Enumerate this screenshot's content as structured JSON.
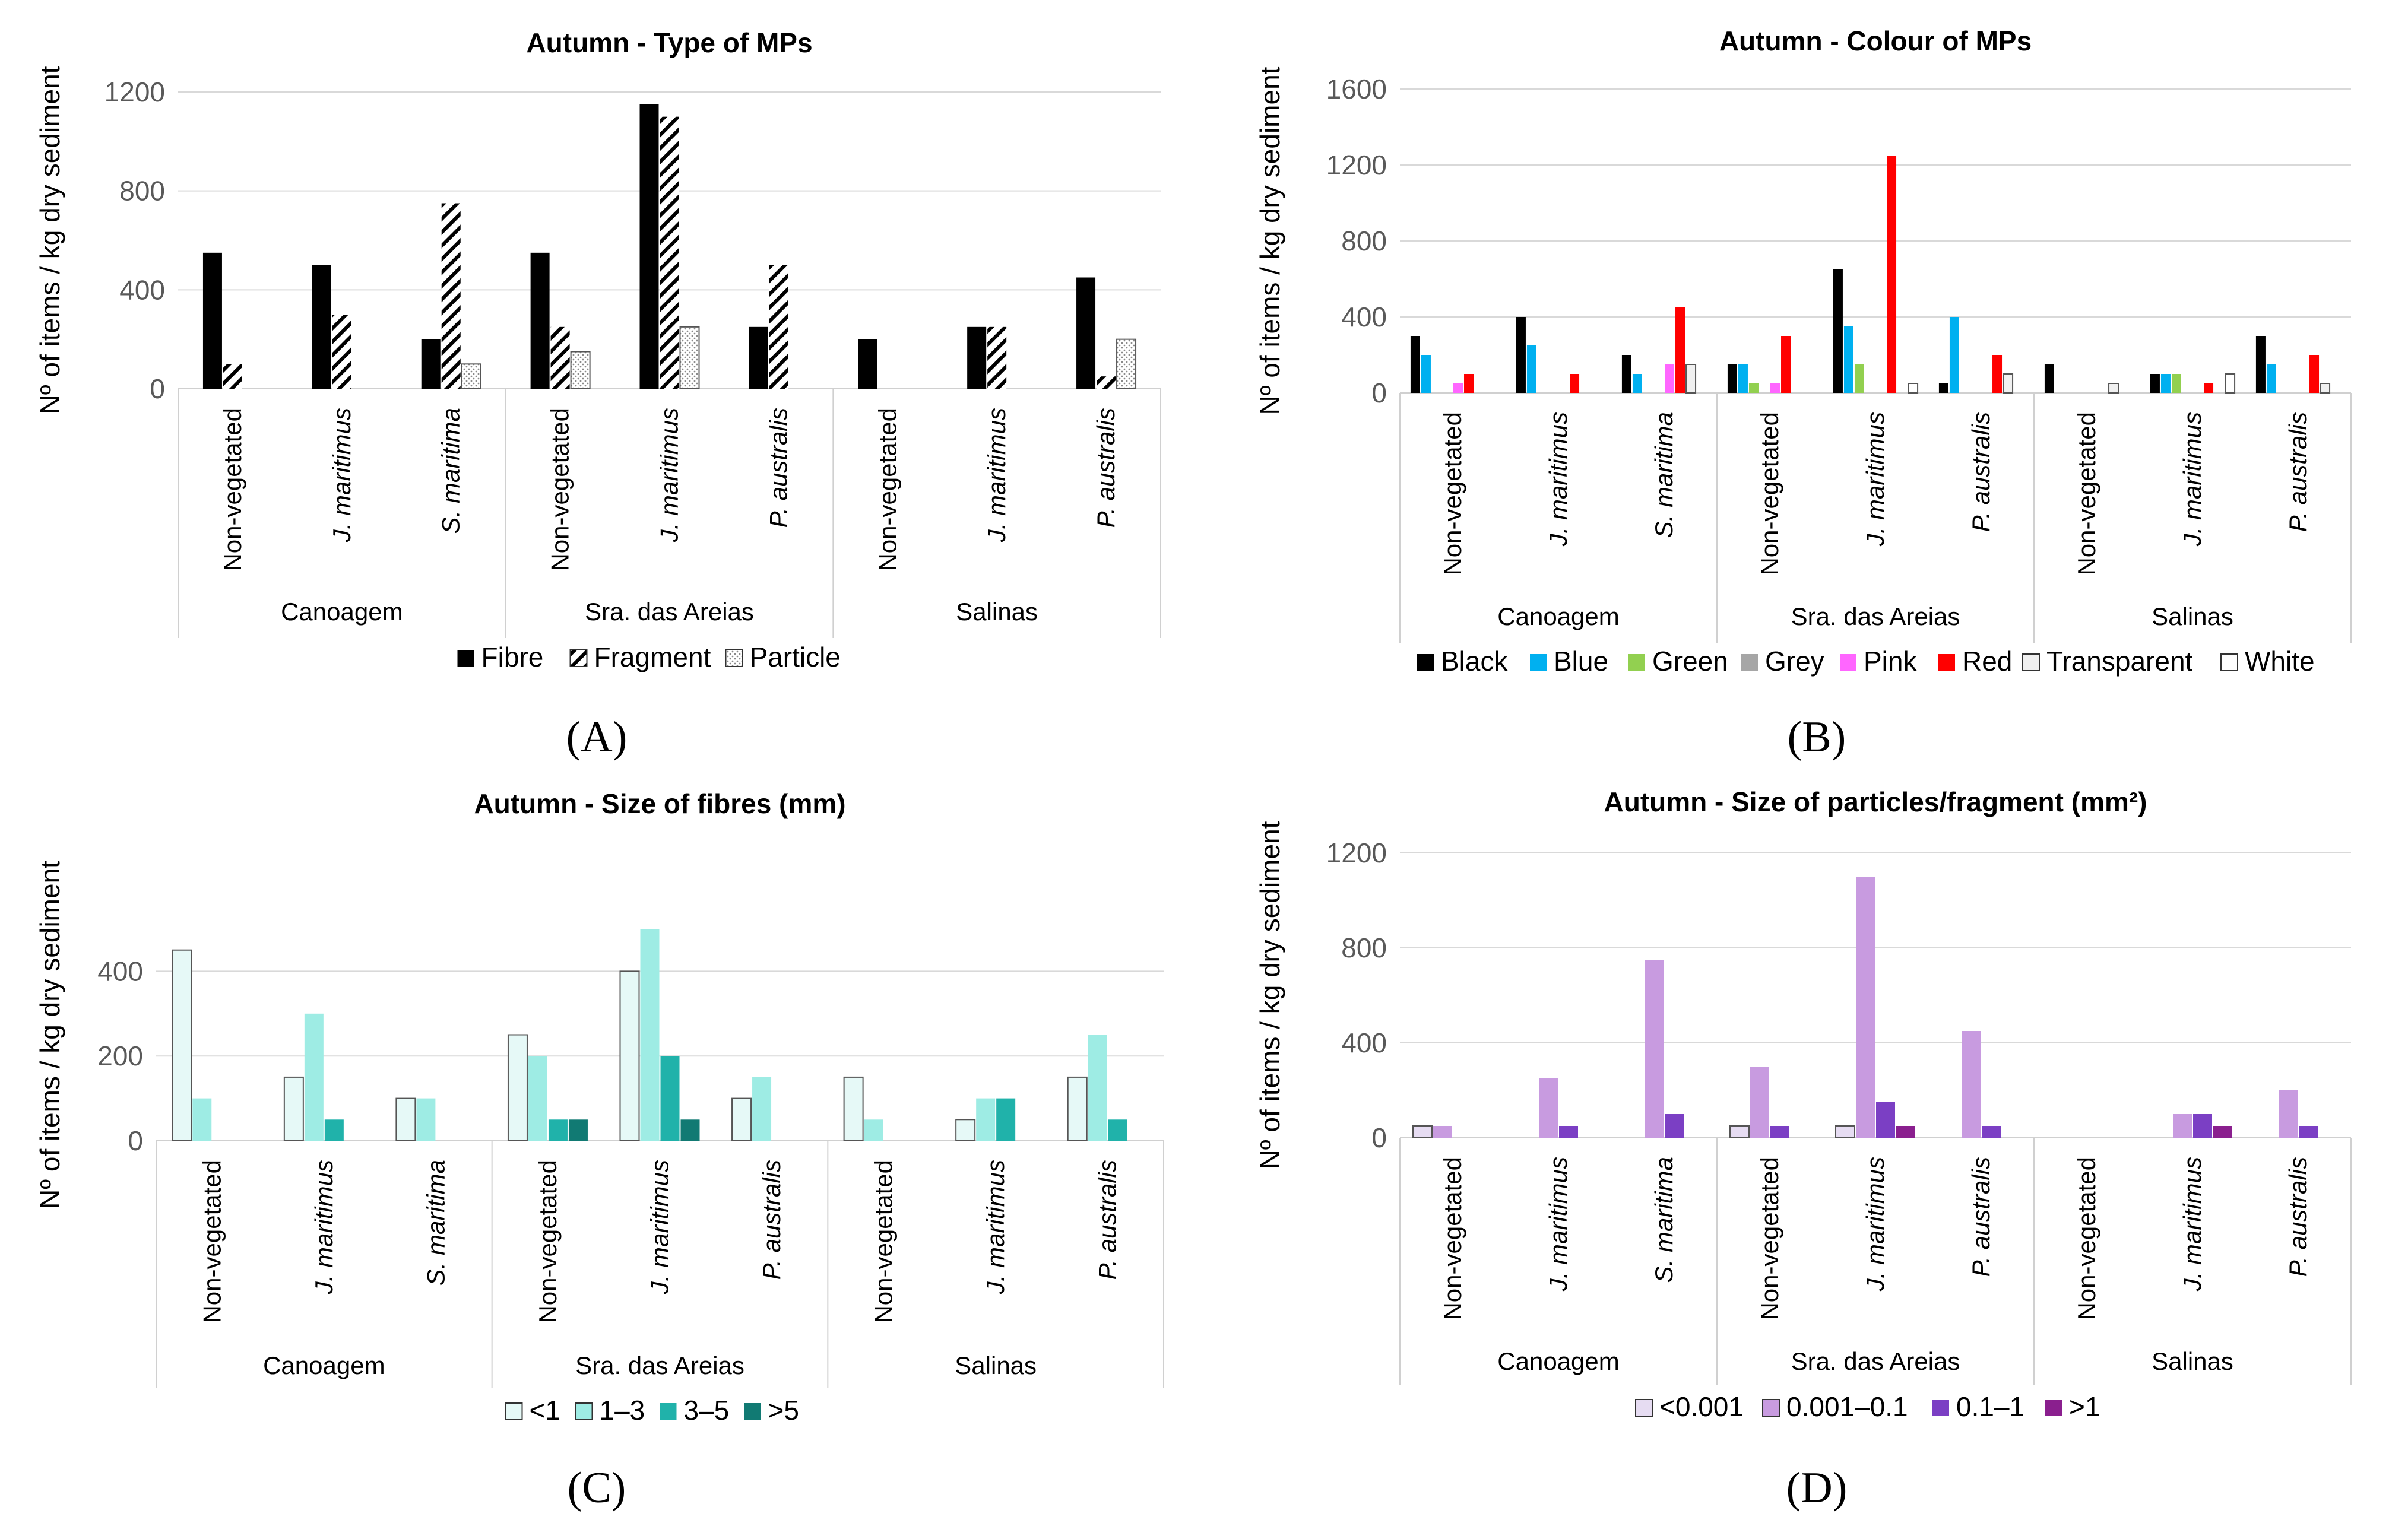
{
  "panel_labels": [
    "(A)",
    "(B)",
    "(C)",
    "(D)"
  ],
  "chart_data": [
    {
      "type": "bar",
      "panel": "A",
      "title": "Autumn - Type of MPs",
      "ylabel": "Nº of items / kg dry sediment",
      "xlabel": "",
      "ylim": [
        0,
        1200
      ],
      "yticks": [
        0,
        400,
        800,
        1200
      ],
      "grid": true,
      "legend_position": "bottom",
      "groups": [
        "Canoagem",
        "Sra. das Areias",
        "Salinas"
      ],
      "categories": [
        "Non-vegetated",
        "J. maritimus",
        "S. maritima",
        "Non-vegetated",
        "J. maritimus",
        "P. australis",
        "Non-vegetated",
        "J. maritimus",
        "P. australis"
      ],
      "category_italic": [
        false,
        true,
        true,
        false,
        true,
        true,
        false,
        true,
        true
      ],
      "series": [
        {
          "name": "Fibre",
          "color": "#000000",
          "pattern": "solid",
          "values": [
            550,
            500,
            200,
            550,
            1150,
            250,
            200,
            250,
            450
          ]
        },
        {
          "name": "Fragment",
          "color": "#000000",
          "pattern": "diag",
          "values": [
            100,
            300,
            750,
            250,
            1100,
            500,
            0,
            250,
            50
          ]
        },
        {
          "name": "Particle",
          "color": "#9a9a9a",
          "pattern": "dots",
          "values": [
            0,
            0,
            100,
            150,
            250,
            0,
            0,
            0,
            200
          ]
        }
      ]
    },
    {
      "type": "bar",
      "panel": "B",
      "title": "Autumn - Colour of MPs",
      "ylabel": "Nº of items / kg dry sediment",
      "xlabel": "",
      "ylim": [
        0,
        1600
      ],
      "yticks": [
        0,
        400,
        800,
        1200,
        1600
      ],
      "grid": true,
      "legend_position": "bottom",
      "groups": [
        "Canoagem",
        "Sra. das Areias",
        "Salinas"
      ],
      "categories": [
        "Non-vegetated",
        "J. maritimus",
        "S. maritima",
        "Non-vegetated",
        "J. maritimus",
        "P. australis",
        "Non-vegetated",
        "J. maritimus",
        "P. australis"
      ],
      "category_italic": [
        false,
        true,
        true,
        false,
        true,
        true,
        false,
        true,
        true
      ],
      "series": [
        {
          "name": "Black",
          "color": "#000000",
          "pattern": "solid",
          "values": [
            300,
            400,
            200,
            150,
            650,
            50,
            150,
            100,
            300
          ]
        },
        {
          "name": "Blue",
          "color": "#00b0f0",
          "pattern": "solid",
          "values": [
            200,
            250,
            100,
            150,
            350,
            400,
            0,
            100,
            150
          ]
        },
        {
          "name": "Green",
          "color": "#92d050",
          "pattern": "solid",
          "values": [
            0,
            0,
            0,
            50,
            150,
            0,
            0,
            100,
            0
          ]
        },
        {
          "name": "Grey",
          "color": "#a6a6a6",
          "pattern": "solid",
          "values": [
            0,
            0,
            0,
            0,
            0,
            0,
            0,
            0,
            0
          ]
        },
        {
          "name": "Pink",
          "color": "#ff66ff",
          "pattern": "solid",
          "values": [
            50,
            0,
            150,
            50,
            0,
            0,
            0,
            0,
            0
          ]
        },
        {
          "name": "Red",
          "color": "#ff0000",
          "pattern": "solid",
          "values": [
            100,
            100,
            450,
            300,
            1250,
            200,
            0,
            50,
            200
          ]
        },
        {
          "name": "Transparent",
          "color": "#f0f0f0",
          "pattern": "solid",
          "values": [
            0,
            0,
            150,
            0,
            0,
            100,
            50,
            0,
            50
          ]
        },
        {
          "name": "White",
          "color": "#ffffff",
          "pattern": "outline",
          "values": [
            0,
            0,
            0,
            0,
            50,
            0,
            0,
            100,
            0
          ]
        }
      ]
    },
    {
      "type": "bar",
      "panel": "C",
      "title": "Autumn - Size of fibres (mm)",
      "ylabel": "Nº of items / kg dry sediment",
      "xlabel": "",
      "ylim": [
        0,
        500
      ],
      "yticks": [
        0,
        200,
        400
      ],
      "grid": true,
      "legend_position": "bottom",
      "groups": [
        "Canoagem",
        "Sra. das Areias",
        "Salinas"
      ],
      "categories": [
        "Non-vegetated",
        "J. maritimus",
        "S. maritima",
        "Non-vegetated",
        "J. maritimus",
        "P. australis",
        "Non-vegetated",
        "J. maritimus",
        "P. australis"
      ],
      "category_italic": [
        false,
        true,
        true,
        false,
        true,
        true,
        false,
        true,
        true
      ],
      "series": [
        {
          "name": "<1",
          "color": "#e6f9f7",
          "pattern": "solid",
          "values": [
            450,
            150,
            100,
            250,
            400,
            100,
            150,
            50,
            150
          ]
        },
        {
          "name": "1–3",
          "color": "#9eece4",
          "pattern": "solid",
          "values": [
            100,
            300,
            100,
            200,
            500,
            150,
            50,
            100,
            250
          ]
        },
        {
          "name": "3–5",
          "color": "#20b2aa",
          "pattern": "solid",
          "values": [
            0,
            50,
            0,
            50,
            200,
            0,
            0,
            100,
            50
          ]
        },
        {
          "name": ">5",
          "color": "#117a73",
          "pattern": "solid",
          "values": [
            0,
            0,
            0,
            50,
            50,
            0,
            0,
            0,
            0
          ]
        }
      ]
    },
    {
      "type": "bar",
      "panel": "D",
      "title": "Autumn - Size of particles/fragment (mm²)",
      "ylabel": "Nº of items / kg dry sediment",
      "xlabel": "",
      "ylim": [
        0,
        1200
      ],
      "yticks": [
        0,
        400,
        800,
        1200
      ],
      "grid": true,
      "legend_position": "bottom",
      "groups": [
        "Canoagem",
        "Sra. das Areias",
        "Salinas"
      ],
      "categories": [
        "Non-vegetated",
        "J. maritimus",
        "S. maritima",
        "Non-vegetated",
        "J. maritimus",
        "P. australis",
        "Non-vegetated",
        "J. maritimus",
        "P. australis"
      ],
      "category_italic": [
        false,
        true,
        true,
        false,
        true,
        true,
        false,
        true,
        true
      ],
      "series": [
        {
          "name": "<0.001",
          "color": "#e6dcf2",
          "pattern": "solid",
          "values": [
            50,
            0,
            0,
            50,
            50,
            0,
            0,
            0,
            0
          ]
        },
        {
          "name": "0.001–0.1",
          "color": "#c89be0",
          "pattern": "solid",
          "values": [
            50,
            250,
            750,
            300,
            1100,
            450,
            0,
            100,
            200
          ]
        },
        {
          "name": "0.1–1",
          "color": "#7b3fc4",
          "pattern": "solid",
          "values": [
            0,
            50,
            100,
            50,
            150,
            50,
            0,
            100,
            50
          ]
        },
        {
          "name": ">1",
          "color": "#8a1f8e",
          "pattern": "solid",
          "values": [
            0,
            0,
            0,
            0,
            50,
            0,
            0,
            50,
            0
          ]
        }
      ]
    }
  ]
}
